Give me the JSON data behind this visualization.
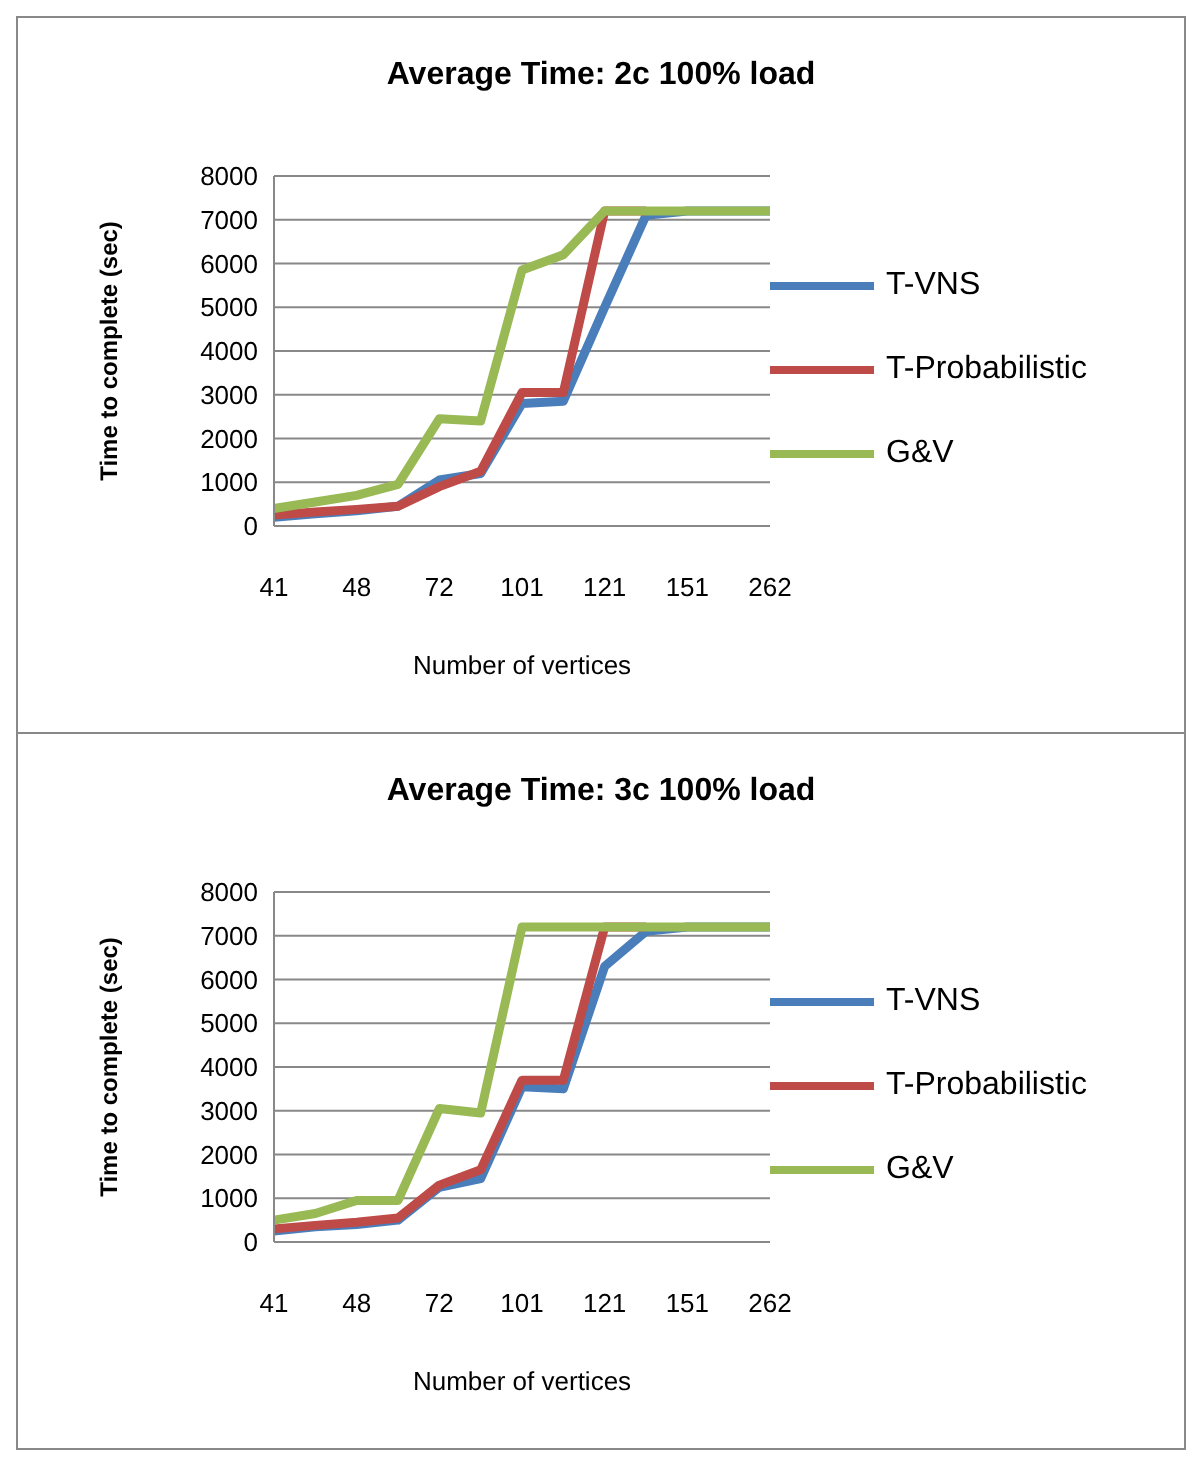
{
  "chart_data": [
    {
      "type": "line",
      "title": "Average Time: 2c 100% load",
      "xlabel": "Number of vertices",
      "ylabel": "Time to complete (sec)",
      "categories": [
        "41",
        null,
        "48",
        null,
        "72",
        null,
        "101",
        null,
        "121",
        null,
        "151",
        null,
        "262"
      ],
      "series": [
        {
          "name": "T-VNS",
          "color": "#4a7ebb",
          "values": [
            200,
            280,
            350,
            450,
            1050,
            1200,
            2800,
            2850,
            5000,
            7100,
            7200,
            7200,
            7200
          ]
        },
        {
          "name": "T-Probabilistic",
          "color": "#be4b48",
          "values": [
            250,
            320,
            380,
            450,
            900,
            1250,
            3050,
            3050,
            7200,
            7200,
            null,
            null,
            null
          ]
        },
        {
          "name": "G&V",
          "color": "#98b954",
          "values": [
            400,
            550,
            700,
            950,
            2450,
            2400,
            5850,
            6200,
            7200,
            7200,
            7200,
            7200,
            7200
          ]
        }
      ],
      "ylim": [
        0,
        8000
      ],
      "yticks": [
        0,
        1000,
        2000,
        3000,
        4000,
        5000,
        6000,
        7000,
        8000
      ],
      "grid": "y",
      "legend": "right",
      "marker": "none",
      "line_style": "solid"
    },
    {
      "type": "line",
      "title": "Average Time: 3c 100% load",
      "xlabel": "Number of vertices",
      "ylabel": "Time to complete (sec)",
      "categories": [
        "41",
        null,
        "48",
        null,
        "72",
        null,
        "101",
        null,
        "121",
        null,
        "151",
        null,
        "262"
      ],
      "series": [
        {
          "name": "T-VNS",
          "color": "#4a7ebb",
          "values": [
            250,
            350,
            400,
            500,
            1250,
            1450,
            3550,
            3500,
            6300,
            7100,
            7200,
            7200,
            7200
          ]
        },
        {
          "name": "T-Probabilistic",
          "color": "#be4b48",
          "values": [
            300,
            380,
            450,
            550,
            1300,
            1650,
            3700,
            3700,
            7200,
            7200,
            null,
            null,
            null
          ]
        },
        {
          "name": "G&V",
          "color": "#98b954",
          "values": [
            500,
            650,
            950,
            950,
            3050,
            2950,
            7200,
            7200,
            7200,
            7200,
            7200,
            7200,
            7200
          ]
        }
      ],
      "ylim": [
        0,
        8000
      ],
      "yticks": [
        0,
        1000,
        2000,
        3000,
        4000,
        5000,
        6000,
        7000,
        8000
      ],
      "grid": "y",
      "legend": "right",
      "marker": "none",
      "line_style": "solid"
    }
  ]
}
